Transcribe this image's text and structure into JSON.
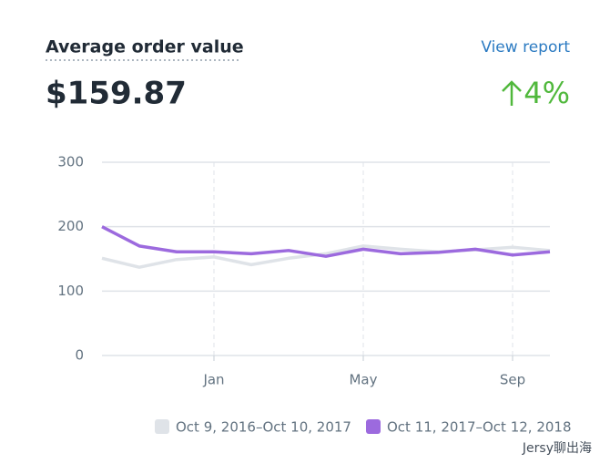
{
  "header": {
    "title": "Average order value",
    "link": "View report",
    "value": "$159.87",
    "change": "4%"
  },
  "watermark": "Jersy聊出海",
  "chart_data": {
    "type": "line",
    "categories": [
      null,
      null,
      null,
      "Jan",
      null,
      null,
      null,
      "May",
      null,
      null,
      null,
      "Sep",
      null
    ],
    "series": [
      {
        "name": "Oct 9, 2016–Oct 10, 2017",
        "color": "#dfe3e8",
        "values": [
          151,
          137,
          149,
          153,
          141,
          151,
          158,
          170,
          165,
          161,
          164,
          168,
          163
        ]
      },
      {
        "name": "Oct 11, 2017–Oct 12, 2018",
        "color": "#9c6ade",
        "values": [
          200,
          170,
          161,
          161,
          158,
          163,
          154,
          165,
          158,
          160,
          165,
          156,
          161
        ]
      }
    ],
    "ylim": [
      0,
      300
    ],
    "yticks": [
      0,
      100,
      200,
      300
    ],
    "grid": true
  }
}
